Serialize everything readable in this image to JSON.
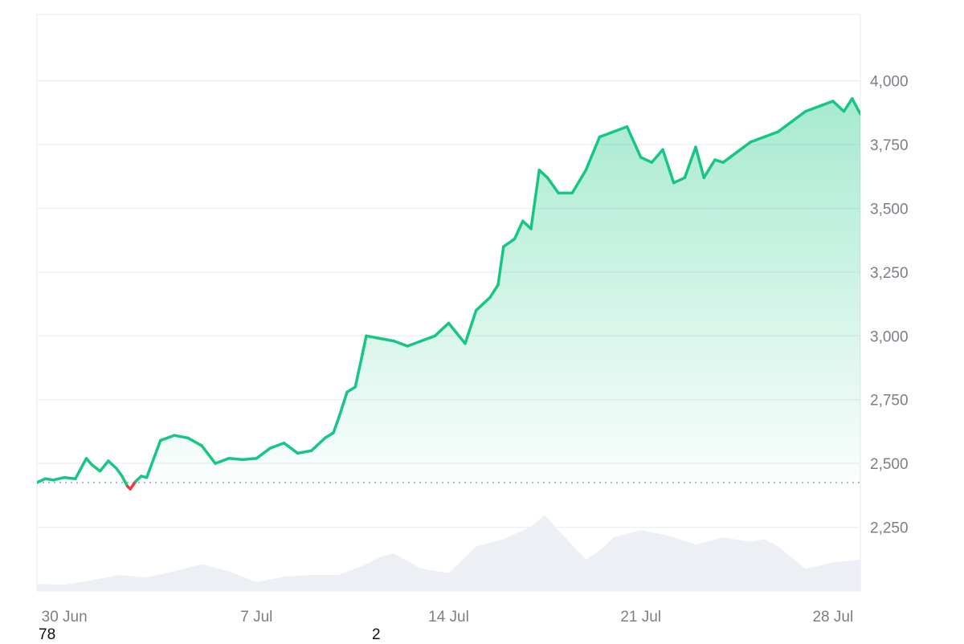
{
  "chart_data": {
    "type": "area",
    "title": "",
    "xlabel": "",
    "ylabel": "",
    "x_tick_labels": [
      "30 Jun",
      "7 Jul",
      "14 Jul",
      "21 Jul",
      "28 Jul"
    ],
    "y_tick_labels": [
      "4,000",
      "3,750",
      "3,500",
      "3,250",
      "3,000",
      "2,750",
      "2,500",
      "2,250"
    ],
    "y_ticks": [
      4000,
      3750,
      3500,
      3250,
      3000,
      2750,
      2500,
      2250
    ],
    "ylim": [
      2000,
      4260
    ],
    "x_range_days": [
      0,
      30
    ],
    "x_tick_positions_days": [
      1,
      8,
      15,
      22,
      29
    ],
    "baseline_value": 2425,
    "grid": "horizontal",
    "colors": {
      "up": "#16c784",
      "down": "#ea3943",
      "area_top": "#16c784",
      "baseline": "#9aa0a6",
      "volume": "#eceff3",
      "grid": "#eef0f3"
    },
    "series": [
      {
        "x": [
          0,
          0.3,
          0.6,
          1.0,
          1.4,
          1.8,
          2.0,
          2.3,
          2.6,
          2.9,
          3.1,
          3.3,
          3.4,
          3.6,
          3.8,
          4.0,
          4.5,
          5.0,
          5.5,
          6.0,
          6.5,
          7.0,
          7.5,
          8.0,
          8.5,
          9.0,
          9.5,
          10.0,
          10.5,
          10.8,
          11.0,
          11.3,
          11.6,
          12.0,
          12.5,
          13.0,
          13.5,
          14.0,
          14.5,
          15.0,
          15.3,
          15.6,
          16.0,
          16.5,
          16.8,
          17.0,
          17.4,
          17.7,
          18.0,
          18.3,
          18.6,
          19.0,
          19.5,
          20.0,
          20.5,
          21.0,
          21.5,
          22.0,
          22.4,
          22.8,
          23.2,
          23.6,
          24.0,
          24.3,
          24.7,
          25.0,
          25.5,
          26.0,
          26.5,
          27.0,
          27.5,
          28.0,
          28.5,
          29.0,
          29.4,
          29.7,
          30.0
        ],
        "y": [
          2425,
          2440,
          2435,
          2445,
          2440,
          2520,
          2495,
          2470,
          2510,
          2480,
          2450,
          2410,
          2400,
          2430,
          2450,
          2445,
          2590,
          2610,
          2600,
          2570,
          2500,
          2520,
          2515,
          2520,
          2560,
          2580,
          2540,
          2550,
          2600,
          2620,
          2680,
          2780,
          2800,
          3000,
          2990,
          2980,
          2960,
          2980,
          3000,
          3050,
          3010,
          2970,
          3100,
          3150,
          3200,
          3350,
          3380,
          3450,
          3420,
          3650,
          3620,
          3560,
          3560,
          3650,
          3780,
          3800,
          3820,
          3700,
          3680,
          3730,
          3600,
          3620,
          3740,
          3620,
          3690,
          3680,
          3720,
          3760,
          3780,
          3800,
          3840,
          3880,
          3900,
          3920,
          3880,
          3930,
          3870
        ]
      }
    ],
    "volume": {
      "x": [
        0,
        1,
        2,
        3,
        4,
        5,
        6,
        7,
        8,
        9,
        10,
        11,
        12,
        12.5,
        13,
        14,
        15,
        16,
        17,
        18,
        18.5,
        19,
        20,
        20.5,
        21,
        22,
        23,
        24,
        25,
        26,
        26.5,
        27,
        28,
        29,
        30
      ],
      "y": [
        0.08,
        0.07,
        0.12,
        0.18,
        0.15,
        0.22,
        0.3,
        0.22,
        0.1,
        0.16,
        0.18,
        0.18,
        0.3,
        0.38,
        0.42,
        0.25,
        0.2,
        0.5,
        0.58,
        0.72,
        0.85,
        0.68,
        0.35,
        0.45,
        0.6,
        0.68,
        0.62,
        0.52,
        0.6,
        0.55,
        0.58,
        0.5,
        0.25,
        0.32,
        0.35
      ]
    }
  },
  "corner_labels": {
    "left": "78",
    "middle": "2"
  }
}
